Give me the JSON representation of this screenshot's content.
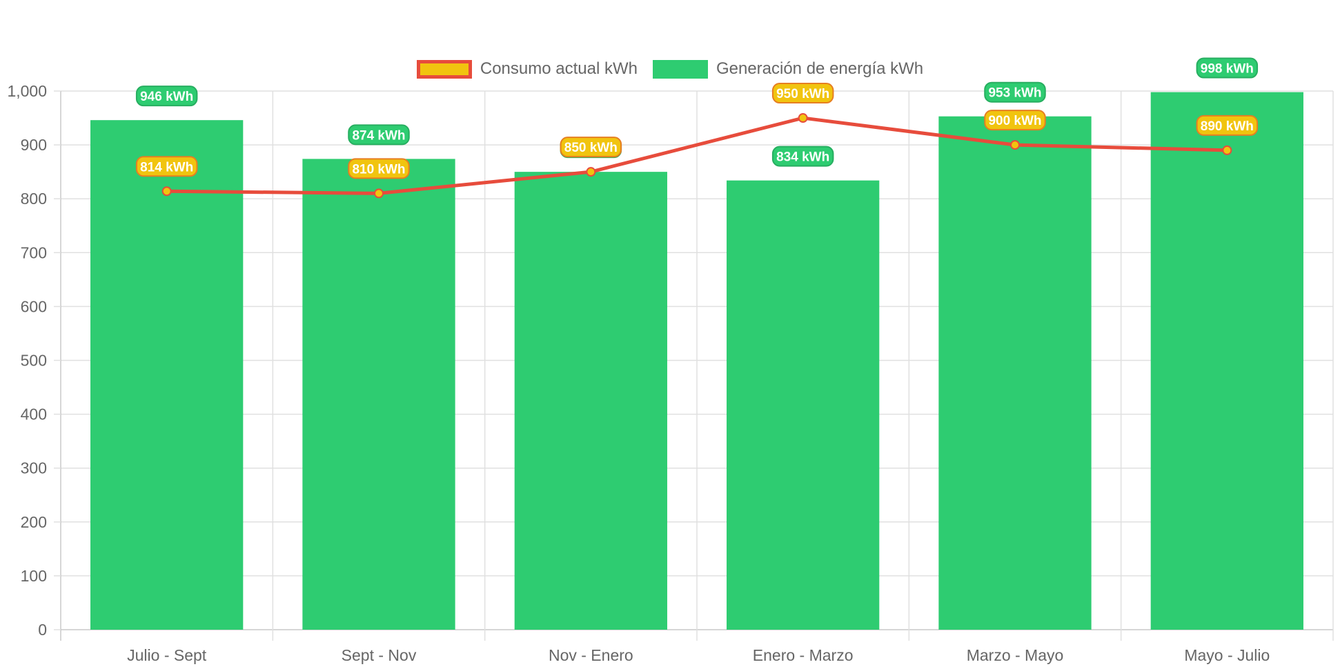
{
  "legend": {
    "consumo_label": "Consumo actual kWh",
    "generacion_label": "Generación de energía kWh"
  },
  "colors": {
    "bar": "#2ecc71",
    "bar_label_border": "#27ae60",
    "line": "#e74c3c",
    "point": "#f1c40f",
    "line_label_border": "#e67e22",
    "grid": "#e0e0e0",
    "text": "#666666"
  },
  "chart_data": {
    "type": "bar",
    "categories": [
      "Julio - Sept",
      "Sept - Nov",
      "Nov - Enero",
      "Enero - Marzo",
      "Marzo - Mayo",
      "Mayo - Julio"
    ],
    "series": [
      {
        "name": "Consumo actual kWh",
        "type": "line",
        "values": [
          814,
          810,
          850,
          950,
          900,
          890
        ]
      },
      {
        "name": "Generación de energía kWh",
        "type": "bar",
        "values": [
          946,
          874,
          850,
          834,
          953,
          998
        ]
      }
    ],
    "value_suffix": " kWh",
    "ylim": [
      0,
      1000
    ],
    "yticks": [
      0,
      100,
      200,
      300,
      400,
      500,
      600,
      700,
      800,
      900,
      1000
    ],
    "ytick_labels": [
      "0",
      "100",
      "200",
      "300",
      "400",
      "500",
      "600",
      "700",
      "800",
      "900",
      "1,000"
    ],
    "grid": true,
    "legend_position": "top",
    "title": "",
    "xlabel": "",
    "ylabel": ""
  }
}
